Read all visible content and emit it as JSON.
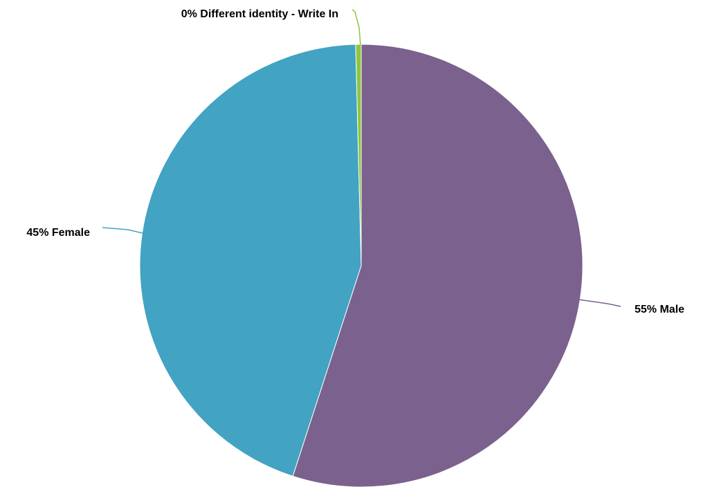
{
  "chart_data": {
    "type": "pie",
    "title": "",
    "start_angle_deg": 0,
    "direction": "clockwise",
    "slices": [
      {
        "label": "55% Male",
        "category": "Male",
        "value": 55,
        "color": "#7b618e"
      },
      {
        "label": "45% Female",
        "category": "Female",
        "value": 44.6,
        "color": "#42a3c2"
      },
      {
        "label": "0% Different identity - Write In",
        "category": "Different identity - Write In",
        "value": 0.4,
        "color": "#8dc63f"
      }
    ]
  }
}
